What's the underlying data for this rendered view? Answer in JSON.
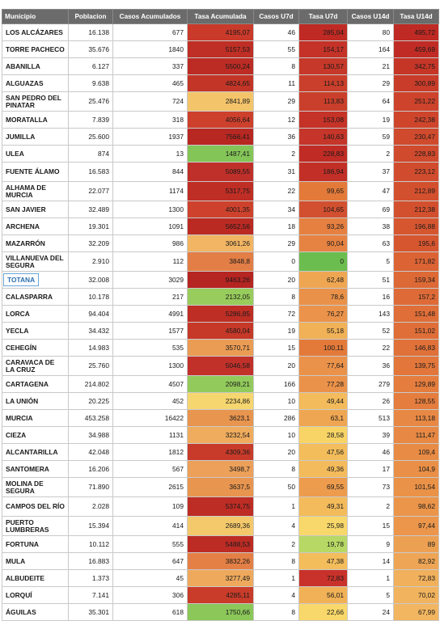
{
  "headers": [
    "Municipio",
    "Poblacion",
    "Casos Acumulados",
    "Tasa Acumulada",
    "Casos U7d",
    "Tasa U7d",
    "Casos U14d",
    "Tasa U14d"
  ],
  "rows": [
    {
      "name": "LOS ALCÁZARES",
      "pop": "16.138",
      "cases": "677",
      "rate": "4195,07",
      "rate_color": "#c93a2a",
      "c7": "46",
      "t7": "285,04",
      "t7_color": "#bf2a24",
      "c14": "80",
      "t14": "495,72",
      "t14_color": "#bf2a24"
    },
    {
      "name": "TORRE PACHECO",
      "pop": "35.676",
      "cases": "1840",
      "rate": "5157,53",
      "rate_color": "#bf2f25",
      "c7": "55",
      "t7": "154,17",
      "t7_color": "#c43228",
      "c14": "164",
      "t14": "459,69",
      "t14_color": "#c02c25"
    },
    {
      "name": "ABANILLA",
      "pop": "6.127",
      "cases": "337",
      "rate": "5500,24",
      "rate_color": "#bc2c24",
      "c7": "8",
      "t7": "130,57",
      "t7_color": "#c63829",
      "c14": "21",
      "t14": "342,75",
      "t14_color": "#c63627"
    },
    {
      "name": "ALGUAZAS",
      "pop": "9.638",
      "cases": "465",
      "rate": "4824,65",
      "rate_color": "#c33527",
      "c7": "11",
      "t7": "114,13",
      "t7_color": "#ca3f2b",
      "c14": "29",
      "t14": "300,89",
      "t14_color": "#c93c29"
    },
    {
      "name": "SAN PEDRO DEL PINATAR",
      "pop": "25.476",
      "cases": "724",
      "rate": "2841,89",
      "rate_color": "#f4c46a",
      "c7": "29",
      "t7": "113,83",
      "t7_color": "#ca3f2b",
      "c14": "64",
      "t14": "251,22",
      "t14_color": "#cd432b",
      "tall": true
    },
    {
      "name": "MORATALLA",
      "pop": "7.839",
      "cases": "318",
      "rate": "4056,64",
      "rate_color": "#cd402c",
      "c7": "12",
      "t7": "153,08",
      "t7_color": "#c43228",
      "c14": "19",
      "t14": "242,38",
      "t14_color": "#ce452c"
    },
    {
      "name": "JUMILLA",
      "pop": "25.600",
      "cases": "1937",
      "rate": "7566,41",
      "rate_color": "#b82822",
      "c7": "36",
      "t7": "140,63",
      "t7_color": "#c53529",
      "c14": "59",
      "t14": "230,47",
      "t14_color": "#d04a2d"
    },
    {
      "name": "ULEA",
      "pop": "874",
      "cases": "13",
      "rate": "1487,41",
      "rate_color": "#84c558",
      "c7": "2",
      "t7": "228,83",
      "t7_color": "#c02c25",
      "c14": "2",
      "t14": "228,83",
      "t14_color": "#d04a2d"
    },
    {
      "name": "FUENTE ÁLAMO",
      "pop": "16.583",
      "cases": "844",
      "rate": "5089,55",
      "rate_color": "#c0302a",
      "c7": "31",
      "t7": "186,94",
      "t7_color": "#c22f27",
      "c14": "37",
      "t14": "223,12",
      "t14_color": "#d14c2e",
      "tall": true
    },
    {
      "name": "ALHAMA DE MURCIA",
      "pop": "22.077",
      "cases": "1174",
      "rate": "5317,75",
      "rate_color": "#be2e25",
      "c7": "22",
      "t7": "99,65",
      "t7_color": "#e37a3a",
      "c14": "47",
      "t14": "212,89",
      "t14_color": "#d3502e",
      "tall": true
    },
    {
      "name": "SAN JAVIER",
      "pop": "32.489",
      "cases": "1300",
      "rate": "4001,35",
      "rate_color": "#ce422d",
      "c7": "34",
      "t7": "104,65",
      "t7_color": "#d2502f",
      "c14": "69",
      "t14": "212,38",
      "t14_color": "#d3502e"
    },
    {
      "name": "ARCHENA",
      "pop": "19.301",
      "cases": "1091",
      "rate": "5652,56",
      "rate_color": "#ba2a23",
      "c7": "18",
      "t7": "93,26",
      "t7_color": "#e68040",
      "c14": "38",
      "t14": "196,88",
      "t14_color": "#d65630"
    },
    {
      "name": "MAZARRÓN",
      "pop": "32.209",
      "cases": "986",
      "rate": "3061,26",
      "rate_color": "#f1b564",
      "c7": "29",
      "t7": "90,04",
      "t7_color": "#e68342",
      "c14": "63",
      "t14": "195,6",
      "t14_color": "#d65630"
    },
    {
      "name": "VILLANUEVA DEL SEGURA",
      "pop": "2.910",
      "cases": "112",
      "rate": "3848,8",
      "rate_color": "#e37e47",
      "c7": "0",
      "t7": "0",
      "t7_color": "#6cbd4f",
      "c14": "5",
      "t14": "171,82",
      "t14_color": "#db6334",
      "tall": true
    },
    {
      "name": "TOTANA",
      "pop": "32.008",
      "cases": "3029",
      "rate": "9463,26",
      "rate_color": "#b52521",
      "c7": "20",
      "t7": "62,48",
      "t7_color": "#efa652",
      "c14": "51",
      "t14": "159,34",
      "t14_color": "#dd6936",
      "highlight": true
    },
    {
      "name": "CALASPARRA",
      "pop": "10.178",
      "cases": "217",
      "rate": "2132,05",
      "rate_color": "#98cc5c",
      "c7": "8",
      "t7": "78,6",
      "t7_color": "#ea9149",
      "c14": "16",
      "t14": "157,2",
      "t14_color": "#de6b37"
    },
    {
      "name": "LORCA",
      "pop": "94.404",
      "cases": "4991",
      "rate": "5286,85",
      "rate_color": "#be2e25",
      "c7": "72",
      "t7": "76,27",
      "t7_color": "#eb934a",
      "c14": "143",
      "t14": "151,48",
      "t14_color": "#df6e38"
    },
    {
      "name": "YECLA",
      "pop": "34.432",
      "cases": "1577",
      "rate": "4580,04",
      "rate_color": "#c63828",
      "c7": "19",
      "t7": "55,18",
      "t7_color": "#f1b157",
      "c14": "52",
      "t14": "151,02",
      "t14_color": "#df6e38"
    },
    {
      "name": "CEHEGÍN",
      "pop": "14.983",
      "cases": "535",
      "rate": "3570,71",
      "rate_color": "#ea9c55",
      "c7": "15",
      "t7": "100,11",
      "t7_color": "#e37a3a",
      "c14": "22",
      "t14": "146,83",
      "t14_color": "#e07139"
    },
    {
      "name": "CARAVACA DE LA CRUZ",
      "pop": "25.760",
      "cases": "1300",
      "rate": "5046,58",
      "rate_color": "#c1312a",
      "c7": "20",
      "t7": "77,64",
      "t7_color": "#eb924a",
      "c14": "36",
      "t14": "139,75",
      "t14_color": "#e2763b",
      "tall": true
    },
    {
      "name": "CARTAGENA",
      "pop": "214.802",
      "cases": "4507",
      "rate": "2098,21",
      "rate_color": "#92ca5b",
      "c7": "166",
      "t7": "77,28",
      "t7_color": "#eb924a",
      "c14": "279",
      "t14": "129,89",
      "t14_color": "#e47d3e"
    },
    {
      "name": "LA UNIÓN",
      "pop": "20.225",
      "cases": "452",
      "rate": "2234,86",
      "rate_color": "#f6d66f",
      "c7": "10",
      "t7": "49,44",
      "t7_color": "#f3bb5b",
      "c14": "26",
      "t14": "128,55",
      "t14_color": "#e47d3e"
    },
    {
      "name": "MURCIA",
      "pop": "453.258",
      "cases": "16422",
      "rate": "3623,1",
      "rate_color": "#e8954f",
      "c7": "286",
      "t7": "63,1",
      "t7_color": "#efa652",
      "c14": "513",
      "t14": "113,18",
      "t14_color": "#e78844"
    },
    {
      "name": "CIEZA",
      "pop": "34.988",
      "cases": "1131",
      "rate": "3232,54",
      "rate_color": "#efac5e",
      "c7": "10",
      "t7": "28,58",
      "t7_color": "#f8d466",
      "c14": "39",
      "t14": "111,47",
      "t14_color": "#e78944"
    },
    {
      "name": "ALCANTARILLA",
      "pop": "42.048",
      "cases": "1812",
      "rate": "4309,36",
      "rate_color": "#c83b2a",
      "c7": "20",
      "t7": "47,56",
      "t7_color": "#f3bd5c",
      "c14": "46",
      "t14": "109,4",
      "t14_color": "#e88b45"
    },
    {
      "name": "SANTOMERA",
      "pop": "16.206",
      "cases": "567",
      "rate": "3498,7",
      "rate_color": "#eca05a",
      "c7": "8",
      "t7": "49,36",
      "t7_color": "#f3bb5b",
      "c14": "17",
      "t14": "104,9",
      "t14_color": "#e98f47"
    },
    {
      "name": "MOLINA DE SEGURA",
      "pop": "71.890",
      "cases": "2615",
      "rate": "3637,5",
      "rate_color": "#e8954f",
      "c7": "50",
      "t7": "69,55",
      "t7_color": "#ed9c4e",
      "c14": "73",
      "t14": "101,54",
      "t14_color": "#ea9248",
      "tall": true
    },
    {
      "name": "CAMPOS DEL RÍO",
      "pop": "2.028",
      "cases": "109",
      "rate": "5374,75",
      "rate_color": "#bd2d25",
      "c7": "1",
      "t7": "49,31",
      "t7_color": "#f3bb5b",
      "c14": "2",
      "t14": "98,62",
      "t14_color": "#eb954a",
      "tall": true
    },
    {
      "name": "PUERTO LUMBRERAS",
      "pop": "15.394",
      "cases": "414",
      "rate": "2689,36",
      "rate_color": "#f4c96c",
      "c7": "4",
      "t7": "25,98",
      "t7_color": "#f8d86a",
      "c14": "15",
      "t14": "97,44",
      "t14_color": "#eb964b",
      "tall": true
    },
    {
      "name": "FORTUNA",
      "pop": "10.112",
      "cases": "555",
      "rate": "5488,53",
      "rate_color": "#bc2c24",
      "c7": "2",
      "t7": "19,78",
      "t7_color": "#b7d865",
      "c14": "9",
      "t14": "89",
      "t14_color": "#eca052"
    },
    {
      "name": "MULA",
      "pop": "16.883",
      "cases": "647",
      "rate": "3832,26",
      "rate_color": "#e48046",
      "c7": "8",
      "t7": "47,38",
      "t7_color": "#f3bd5c",
      "c14": "14",
      "t14": "82,92",
      "t14_color": "#eea656"
    },
    {
      "name": "ALBUDEITE",
      "pop": "1.373",
      "cases": "45",
      "rate": "3277,49",
      "rate_color": "#eea95d",
      "c7": "1",
      "t7": "72,83",
      "t7_color": "#c8322a",
      "c14": "1",
      "t14": "72,83",
      "t14_color": "#f0b05c"
    },
    {
      "name": "LORQUÍ",
      "pop": "7.141",
      "cases": "306",
      "rate": "4285,11",
      "rate_color": "#c93c2a",
      "c7": "4",
      "t7": "56,01",
      "t7_color": "#f1b157",
      "c14": "5",
      "t14": "70,02",
      "t14_color": "#f1b35e"
    },
    {
      "name": "ÁGUILAS",
      "pop": "35.301",
      "cases": "618",
      "rate": "1750,66",
      "rate_color": "#8bc759",
      "c7": "8",
      "t7": "22,66",
      "t7_color": "#f8d86a",
      "c14": "24",
      "t14": "67,99",
      "t14_color": "#f2b660"
    }
  ]
}
